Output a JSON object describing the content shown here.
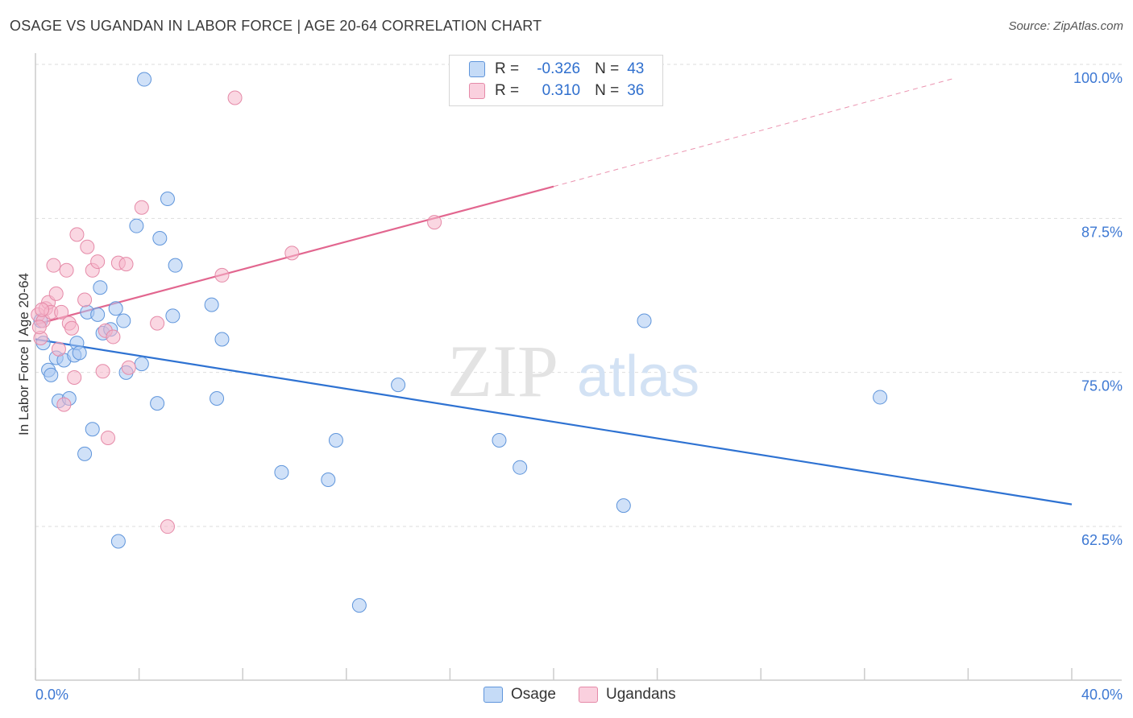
{
  "title": "OSAGE VS UGANDAN IN LABOR FORCE | AGE 20-64 CORRELATION CHART",
  "source": "Source: ZipAtlas.com",
  "watermark": {
    "zip": "ZIP",
    "atlas": "atlas"
  },
  "legend": {
    "rows": [
      {
        "r_label": "R =",
        "r_value": "-0.326",
        "n_label": "N =",
        "n_value": "43",
        "color": "#a9c8f2"
      },
      {
        "r_label": "R =",
        "r_value": "0.310",
        "n_label": "N =",
        "n_value": "36",
        "color": "#f5b7cb"
      }
    ]
  },
  "bottom_legend": [
    {
      "label": "Osage",
      "color": "#a9c8f2"
    },
    {
      "label": "Ugandans",
      "color": "#f5b7cb"
    }
  ],
  "colors": {
    "osage_fill": "#a9c8f2",
    "osage_stroke": "#5f95db",
    "osage_line": "#2e72d2",
    "ugandan_fill": "#f5b7cb",
    "ugandan_stroke": "#e58aa8",
    "ugandan_line": "#e2668f",
    "tick_text": "#3d78d3",
    "grid": "#dddddd"
  },
  "chart_data": {
    "type": "scatter",
    "title": "OSAGE VS UGANDAN IN LABOR FORCE | AGE 20-64 CORRELATION CHART",
    "xlabel": "",
    "ylabel": "In Labor Force | Age 20-64",
    "xlim": [
      0,
      40
    ],
    "ylim": [
      50,
      101
    ],
    "x_tick_labels": [
      {
        "value": 0,
        "label": "0.0%"
      },
      {
        "value": 40,
        "label": "40.0%"
      }
    ],
    "y_tick_labels": [
      {
        "value": 62.5,
        "label": "62.5%"
      },
      {
        "value": 75.0,
        "label": "75.0%"
      },
      {
        "value": 87.5,
        "label": "87.5%"
      },
      {
        "value": 100.0,
        "label": "100.0%"
      }
    ],
    "grid": true,
    "legend_position": "top-center",
    "series": [
      {
        "name": "Osage",
        "points": [
          [
            0.2,
            80.3
          ],
          [
            0.3,
            78.5
          ],
          [
            0.5,
            76.3
          ],
          [
            0.6,
            75.9
          ],
          [
            0.8,
            77.3
          ],
          [
            0.9,
            73.8
          ],
          [
            1.1,
            77.1
          ],
          [
            1.3,
            74.0
          ],
          [
            1.5,
            77.5
          ],
          [
            1.6,
            78.5
          ],
          [
            1.7,
            77.7
          ],
          [
            1.9,
            69.5
          ],
          [
            2.0,
            81.0
          ],
          [
            2.2,
            71.5
          ],
          [
            2.4,
            80.8
          ],
          [
            2.5,
            83.0
          ],
          [
            2.6,
            79.3
          ],
          [
            2.9,
            79.6
          ],
          [
            3.1,
            81.3
          ],
          [
            3.2,
            62.4
          ],
          [
            3.4,
            80.3
          ],
          [
            3.5,
            76.1
          ],
          [
            3.9,
            88.0
          ],
          [
            4.1,
            76.8
          ],
          [
            4.2,
            99.9
          ],
          [
            4.7,
            73.6
          ],
          [
            4.8,
            87.0
          ],
          [
            5.1,
            90.2
          ],
          [
            5.3,
            80.7
          ],
          [
            5.4,
            84.8
          ],
          [
            6.8,
            81.6
          ],
          [
            7.0,
            74.0
          ],
          [
            7.2,
            78.8
          ],
          [
            9.5,
            68.0
          ],
          [
            11.3,
            67.4
          ],
          [
            11.6,
            70.6
          ],
          [
            12.5,
            57.2
          ],
          [
            14.0,
            75.1
          ],
          [
            17.9,
            70.6
          ],
          [
            18.7,
            68.4
          ],
          [
            22.7,
            65.3
          ],
          [
            23.5,
            80.3
          ],
          [
            32.6,
            74.1
          ]
        ]
      },
      {
        "name": "Ugandans",
        "points": [
          [
            0.1,
            80.8
          ],
          [
            0.2,
            78.9
          ],
          [
            0.3,
            80.3
          ],
          [
            0.4,
            81.3
          ],
          [
            0.5,
            81.8
          ],
          [
            0.6,
            81.0
          ],
          [
            0.7,
            84.8
          ],
          [
            0.8,
            82.5
          ],
          [
            0.9,
            78.0
          ],
          [
            1.0,
            81.0
          ],
          [
            1.1,
            73.5
          ],
          [
            1.2,
            84.4
          ],
          [
            1.3,
            80.1
          ],
          [
            1.4,
            79.7
          ],
          [
            1.5,
            75.7
          ],
          [
            1.6,
            87.3
          ],
          [
            1.9,
            82.0
          ],
          [
            2.0,
            86.3
          ],
          [
            2.2,
            84.4
          ],
          [
            2.4,
            85.1
          ],
          [
            2.6,
            76.2
          ],
          [
            2.7,
            79.5
          ],
          [
            2.8,
            70.8
          ],
          [
            3.0,
            79.0
          ],
          [
            3.2,
            85.0
          ],
          [
            3.5,
            84.9
          ],
          [
            3.6,
            76.5
          ],
          [
            4.1,
            89.5
          ],
          [
            4.7,
            80.1
          ],
          [
            5.1,
            63.6
          ],
          [
            7.2,
            84.0
          ],
          [
            7.7,
            98.4
          ],
          [
            9.9,
            85.8
          ],
          [
            15.4,
            88.3
          ],
          [
            0.15,
            79.8
          ],
          [
            0.25,
            81.2
          ]
        ]
      }
    ],
    "trend_lines": [
      {
        "series": "Osage",
        "x": [
          0.0,
          40.0
        ],
        "y": [
          78.8,
          65.4
        ],
        "style": "solid"
      },
      {
        "series": "Ugandans",
        "x": [
          0.0,
          20.0
        ],
        "y": [
          80.0,
          91.2
        ],
        "style": "solid"
      },
      {
        "series": "Ugandans",
        "x": [
          20.0,
          35.5
        ],
        "y": [
          91.2,
          100.0
        ],
        "style": "dashed"
      }
    ]
  }
}
